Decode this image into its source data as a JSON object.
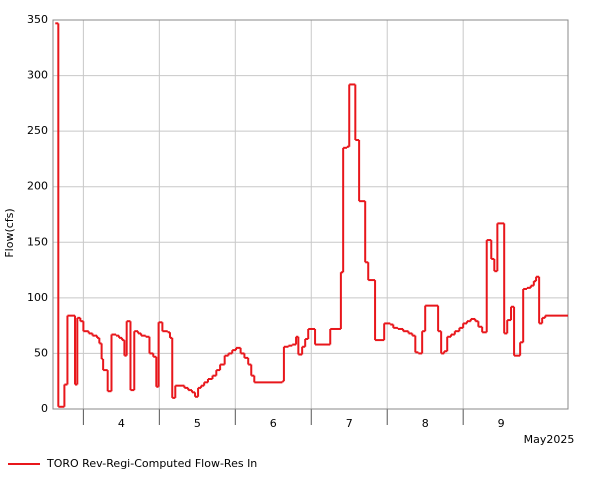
{
  "chart_data": {
    "type": "step-line",
    "y_label": "Flow(cfs)",
    "x_sublabel": "May2025",
    "ylim": [
      0,
      350
    ],
    "yticks": [
      0,
      50,
      100,
      150,
      200,
      250,
      300,
      350
    ],
    "xlim": [
      3.6,
      10.38
    ],
    "xticks": [
      {
        "value": 4,
        "label": "4"
      },
      {
        "value": 5,
        "label": "5"
      },
      {
        "value": 6,
        "label": "6"
      },
      {
        "value": 7,
        "label": "7"
      },
      {
        "value": 8,
        "label": "8"
      },
      {
        "value": 9,
        "label": "9"
      }
    ],
    "tick_label_position": "between",
    "grid": true,
    "legend": "bottom",
    "series": [
      {
        "name": "TORO Rev-Regi-Computed Flow-Res In",
        "color": "#e8161b",
        "x": [
          3.63,
          3.67,
          3.75,
          3.79,
          3.89,
          3.92,
          3.96,
          4.0,
          4.07,
          4.12,
          4.18,
          4.21,
          4.24,
          4.26,
          4.32,
          4.37,
          4.43,
          4.47,
          4.51,
          4.54,
          4.57,
          4.62,
          4.67,
          4.72,
          4.76,
          4.82,
          4.87,
          4.92,
          4.96,
          4.99,
          5.04,
          5.11,
          5.14,
          5.17,
          5.21,
          5.33,
          5.38,
          5.43,
          5.47,
          5.51,
          5.55,
          5.59,
          5.64,
          5.7,
          5.75,
          5.8,
          5.86,
          5.91,
          5.96,
          6.01,
          6.07,
          6.12,
          6.17,
          6.21,
          6.25,
          6.62,
          6.64,
          6.7,
          6.75,
          6.8,
          6.83,
          6.88,
          6.92,
          6.96,
          7.05,
          7.25,
          7.39,
          7.42,
          7.47,
          7.5,
          7.58,
          7.63,
          7.71,
          7.75,
          7.84,
          7.96,
          8.04,
          8.08,
          8.14,
          8.21,
          8.28,
          8.33,
          8.37,
          8.41,
          8.46,
          8.5,
          8.67,
          8.71,
          8.75,
          8.79,
          8.84,
          8.89,
          8.95,
          9.0,
          9.05,
          9.1,
          9.16,
          9.2,
          9.25,
          9.31,
          9.37,
          9.41,
          9.45,
          9.54,
          9.58,
          9.63,
          9.67,
          9.75,
          9.79,
          9.84,
          9.89,
          9.93,
          9.96,
          10.0,
          10.04,
          10.08,
          10.38
        ],
        "values": [
          347,
          2,
          22,
          84,
          22,
          82,
          79,
          70,
          68,
          66,
          64,
          59,
          45,
          35,
          16,
          67,
          66,
          64,
          62,
          48,
          79,
          17,
          70,
          68,
          66,
          65,
          50,
          47,
          20,
          78,
          70,
          69,
          64,
          10,
          21,
          19,
          17,
          15,
          11,
          19,
          21,
          24,
          27,
          30,
          35,
          40,
          48,
          50,
          53,
          55,
          50,
          46,
          40,
          30,
          24,
          25,
          56,
          57,
          58,
          65,
          49,
          56,
          63,
          72,
          58,
          72,
          123,
          235,
          236,
          292,
          242,
          187,
          132,
          116,
          62,
          77,
          76,
          73,
          72,
          70,
          68,
          66,
          51,
          50,
          70,
          93,
          70,
          50,
          52,
          65,
          67,
          70,
          73,
          77,
          79,
          81,
          79,
          74,
          69,
          152,
          135,
          124,
          167,
          68,
          80,
          92,
          48,
          60,
          108,
          109,
          111,
          115,
          119,
          77,
          82,
          84,
          84
        ]
      }
    ]
  }
}
